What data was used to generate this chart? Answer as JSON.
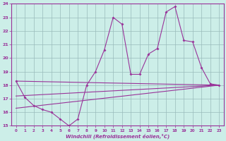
{
  "xlabel": "Windchill (Refroidissement éolien,°C)",
  "ylabel": "",
  "bg_color": "#cceee8",
  "line_color": "#993399",
  "grid_color": "#99bbbb",
  "xlim": [
    -0.5,
    23.5
  ],
  "ylim": [
    15,
    24
  ],
  "xticks": [
    0,
    1,
    2,
    3,
    4,
    5,
    6,
    7,
    8,
    9,
    10,
    11,
    12,
    13,
    14,
    15,
    16,
    17,
    18,
    19,
    20,
    21,
    22,
    23
  ],
  "yticks": [
    15,
    16,
    17,
    18,
    19,
    20,
    21,
    22,
    23,
    24
  ],
  "x_data": [
    0,
    1,
    2,
    3,
    4,
    5,
    6,
    7,
    8,
    9,
    10,
    11,
    12,
    13,
    14,
    15,
    16,
    17,
    18,
    19,
    20,
    21,
    22,
    23
  ],
  "line1": [
    18.3,
    17.1,
    16.5,
    16.2,
    16.0,
    15.5,
    15.0,
    15.5,
    18.0,
    19.0,
    20.6,
    23.0,
    22.5,
    18.8,
    18.8,
    20.3,
    20.7,
    23.4,
    23.8,
    21.3,
    21.2,
    19.3,
    18.1,
    18.0
  ],
  "line2_x": [
    0,
    23
  ],
  "line2_y": [
    18.3,
    18.0
  ],
  "line3_x": [
    0,
    23
  ],
  "line3_y": [
    17.2,
    18.0
  ],
  "line4_x": [
    0,
    23
  ],
  "line4_y": [
    16.3,
    18.0
  ]
}
